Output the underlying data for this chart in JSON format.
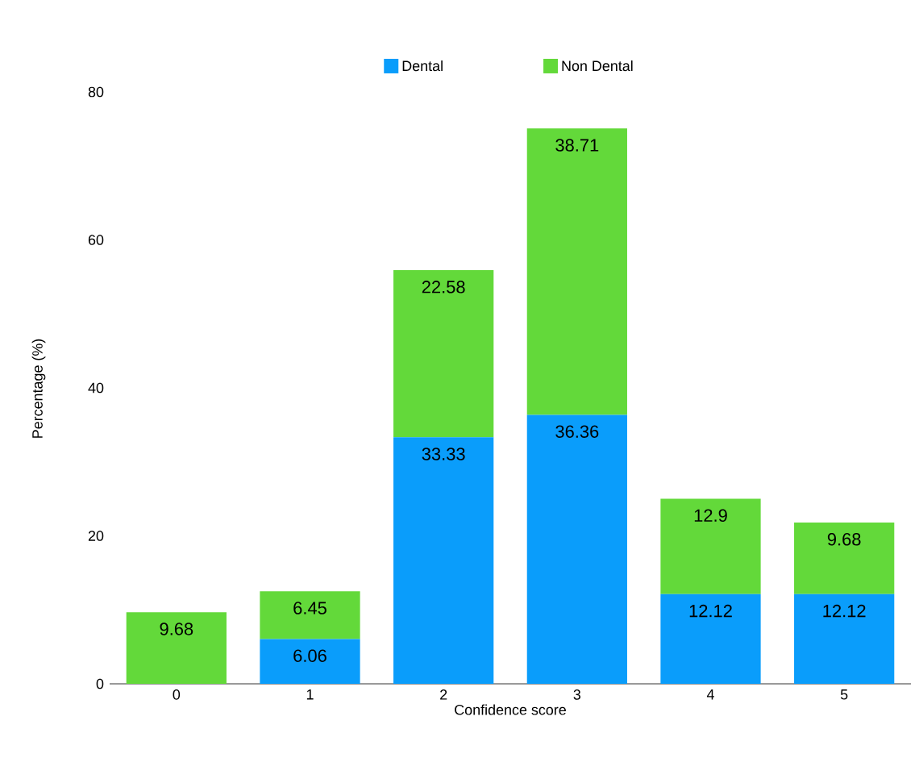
{
  "chart_data": {
    "type": "bar",
    "stacked": true,
    "xlabel": "Confidence score",
    "ylabel": "Percentage (%)",
    "categories": [
      "0",
      "1",
      "2",
      "3",
      "4",
      "5"
    ],
    "series": [
      {
        "name": "Dental",
        "color": "#0a9dfb",
        "values": [
          0,
          6.06,
          33.33,
          36.36,
          12.12,
          12.12
        ],
        "value_labels": [
          null,
          "6.06",
          "33.33",
          "36.36",
          "12.12",
          "12.12"
        ]
      },
      {
        "name": "Non Dental",
        "color": "#63d93a",
        "values": [
          9.68,
          6.45,
          22.58,
          38.71,
          12.9,
          9.68
        ],
        "value_labels": [
          "9.68",
          "6.45",
          "22.58",
          "38.71",
          "12.9",
          "9.68"
        ]
      }
    ],
    "ylim": [
      0,
      80
    ],
    "yticks": [
      0,
      20,
      40,
      60,
      80
    ],
    "legend": "top",
    "grid": false
  }
}
